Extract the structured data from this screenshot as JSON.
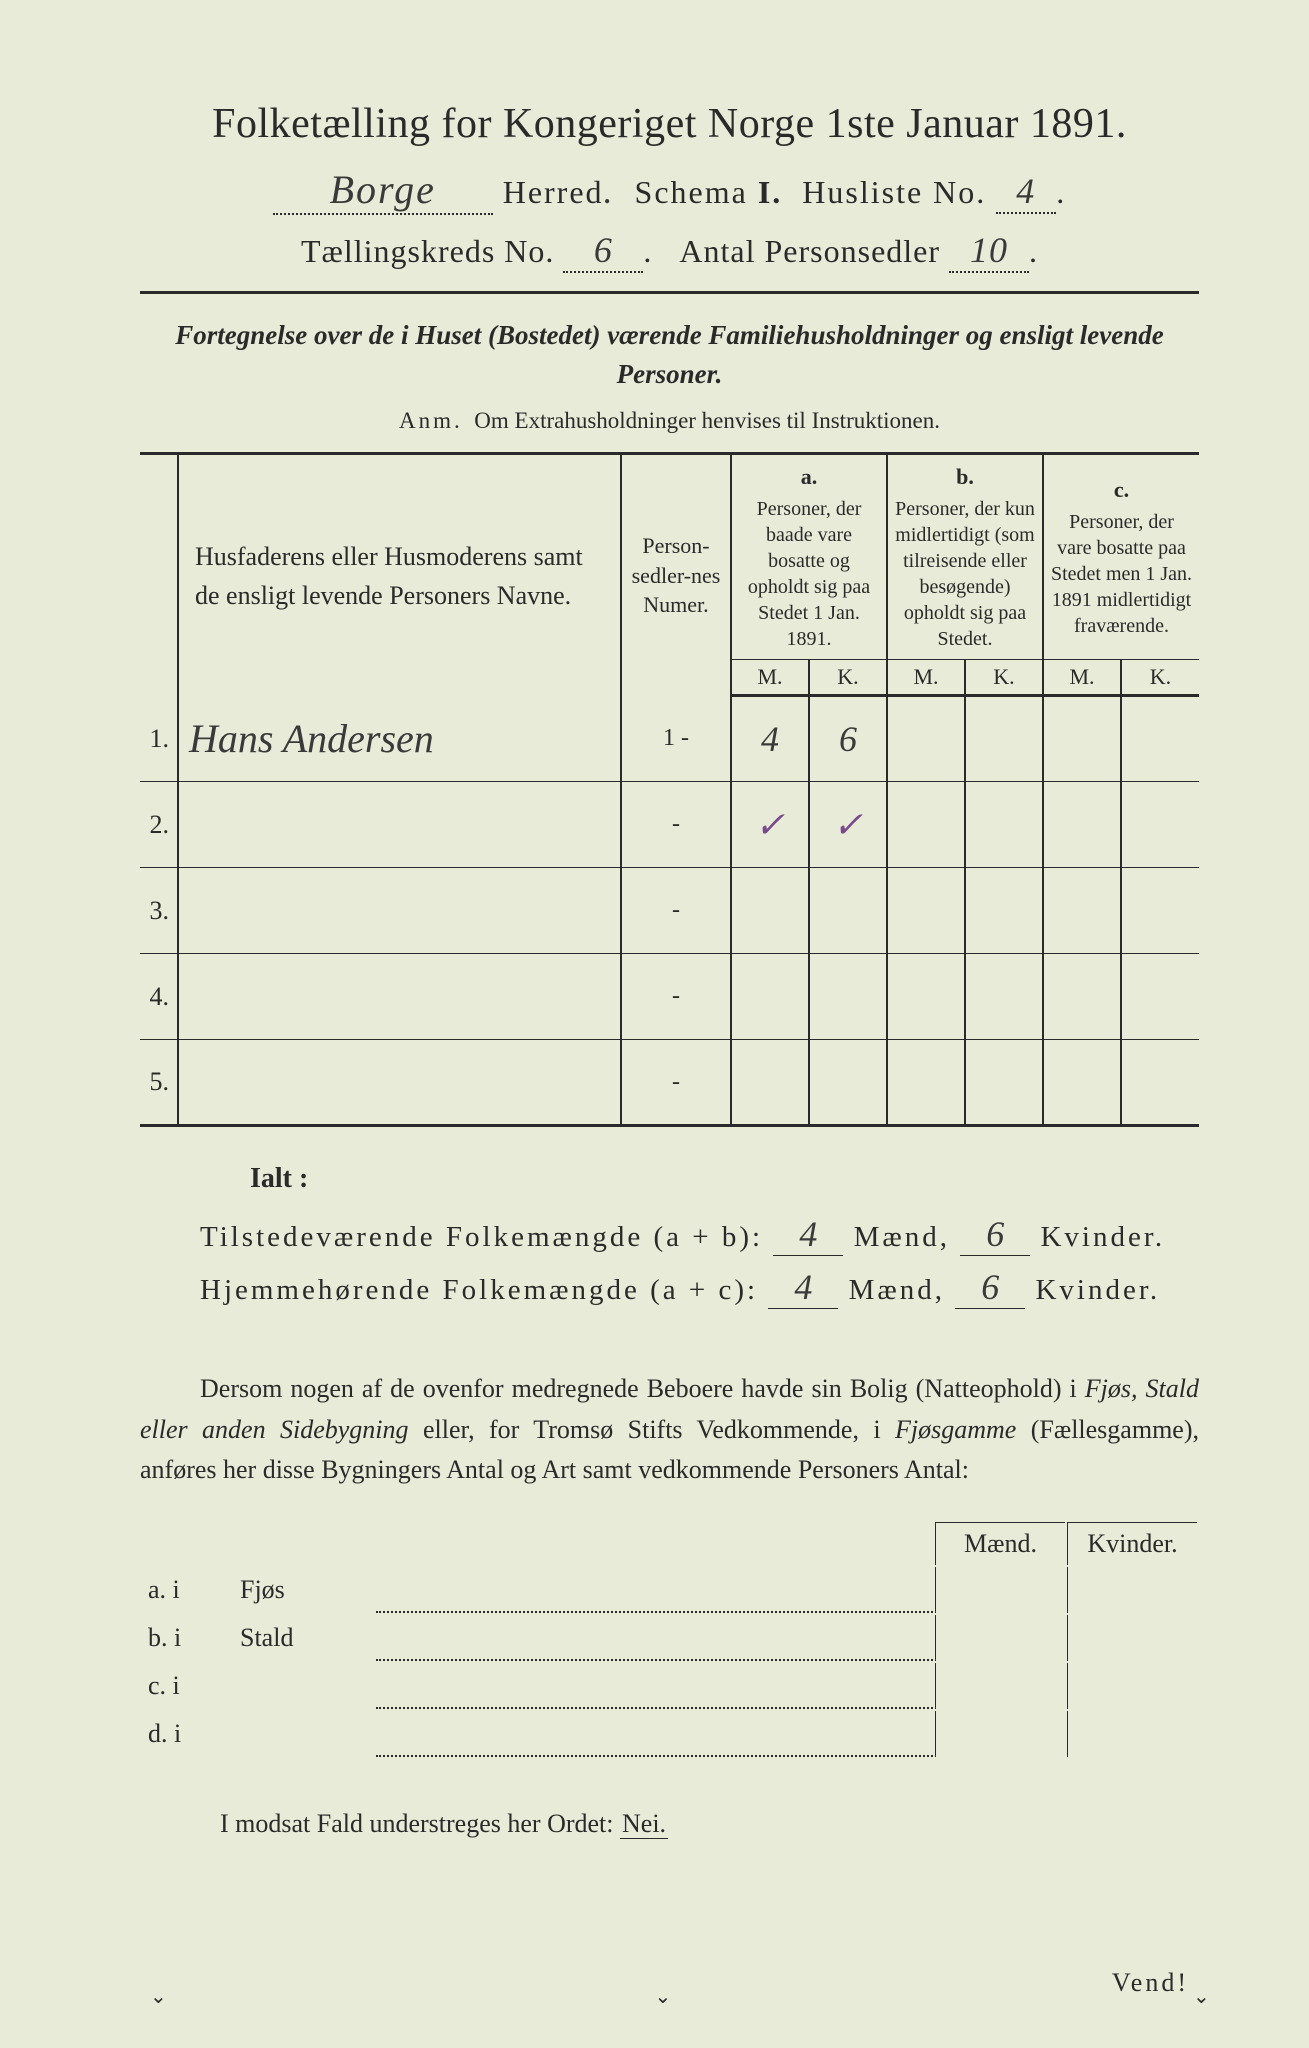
{
  "colors": {
    "paper": "#e8ebd8",
    "ink": "#2a2a2a",
    "pencil_purple": "#7a4a8a",
    "outer_bg": "#4a4a4a"
  },
  "header": {
    "title": "Folketælling for Kongeriget Norge 1ste Januar 1891.",
    "herred_value": "Borge",
    "herred_label": "Herred",
    "schema_label": "Schema",
    "schema_value": "I.",
    "husliste_label": "Husliste No.",
    "husliste_value": "4",
    "kreds_label": "Tællingskreds No.",
    "kreds_value": "6",
    "antal_label": "Antal Personsedler",
    "antal_value": "10"
  },
  "subtitle": "Fortegnelse over de i Huset (Bostedet) værende Familiehusholdninger og ensligt levende Personer.",
  "anm_label": "Anm.",
  "anm_text": "Om Extrahusholdninger henvises til Instruktionen.",
  "table": {
    "col_names": "Husfaderens eller Husmoderens samt de ensligt levende Personers Navne.",
    "col_num": "Person-sedler-nes Numer.",
    "grp_a_lbl": "a.",
    "grp_a": "Personer, der baade vare bosatte og opholdt sig paa Stedet 1 Jan. 1891.",
    "grp_b_lbl": "b.",
    "grp_b": "Personer, der kun midlertidigt (som tilreisende eller besøgende) opholdt sig paa Stedet.",
    "grp_c_lbl": "c.",
    "grp_c": "Personer, der vare bosatte paa Stedet men 1 Jan. 1891 midlertidigt fraværende.",
    "mk_m": "M.",
    "mk_k": "K.",
    "rows": [
      {
        "n": "1.",
        "name": "Hans Andersen",
        "num": "1 -",
        "a_m": "4",
        "a_k": "6",
        "b_m": "",
        "b_k": "",
        "c_m": "",
        "c_k": ""
      },
      {
        "n": "2.",
        "name": "",
        "num": "-",
        "a_m": "✓",
        "a_k": "✓",
        "b_m": "",
        "b_k": "",
        "c_m": "",
        "c_k": "",
        "purple": true
      },
      {
        "n": "3.",
        "name": "",
        "num": "-",
        "a_m": "",
        "a_k": "",
        "b_m": "",
        "b_k": "",
        "c_m": "",
        "c_k": ""
      },
      {
        "n": "4.",
        "name": "",
        "num": "-",
        "a_m": "",
        "a_k": "",
        "b_m": "",
        "b_k": "",
        "c_m": "",
        "c_k": ""
      },
      {
        "n": "5.",
        "name": "",
        "num": "-",
        "a_m": "",
        "a_k": "",
        "b_m": "",
        "b_k": "",
        "c_m": "",
        "c_k": ""
      }
    ]
  },
  "totals": {
    "ialt": "Ialt :",
    "line1_label": "Tilstedeværende Folkemængde (a + b):",
    "line1_m": "4",
    "line1_k": "6",
    "line2_label": "Hjemmehørende Folkemængde (a + c):",
    "line2_m": "4",
    "line2_k": "6",
    "maend": "Mænd,",
    "kvinder": "Kvinder."
  },
  "paragraph": {
    "p1": "Dersom nogen af de ovenfor medregnede Beboere havde sin Bolig (Natteophold) i ",
    "p2": "Fjøs, Stald eller anden Sidebygning",
    "p3": " eller, for Tromsø Stifts Vedkommende, i ",
    "p4": "Fjøsgamme",
    "p5": " (Fællesgamme), anføres her disse Bygningers Antal og Art samt vedkommende Personers Antal:"
  },
  "sub": {
    "hdr_m": "Mænd.",
    "hdr_k": "Kvinder.",
    "rows": [
      {
        "lbl": "a.  i",
        "name": "Fjøs"
      },
      {
        "lbl": "b.  i",
        "name": "Stald"
      },
      {
        "lbl": "c.  i",
        "name": ""
      },
      {
        "lbl": "d.  i",
        "name": ""
      }
    ]
  },
  "modsat": {
    "text": "I modsat Fald understreges her Ordet: ",
    "nei": "Nei."
  },
  "vend": "Vend!"
}
